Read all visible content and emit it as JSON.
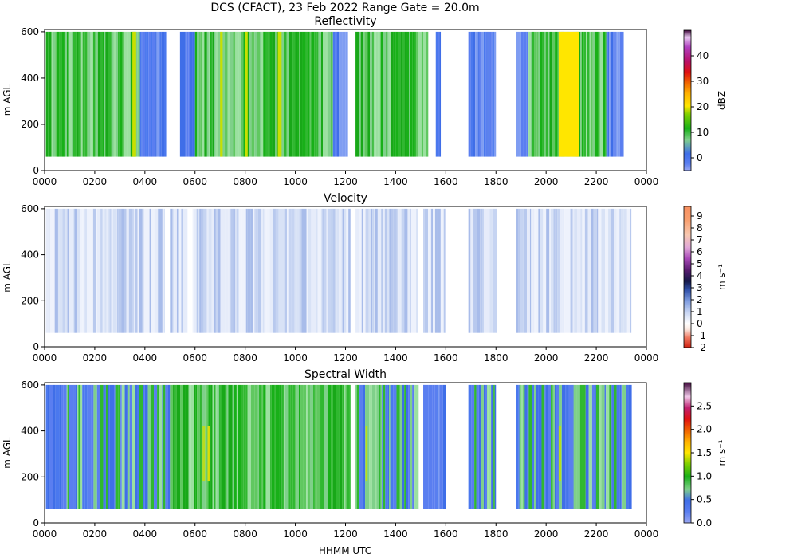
{
  "figure": {
    "suptitle": "DCS (CFACT), 23 Feb 2022 Range Gate = 20.0m",
    "xlabel": "HHMM UTC"
  },
  "chart_data": [
    {
      "type": "heatmap",
      "title": "Reflectivity",
      "xlabel": "",
      "ylabel": "m AGL",
      "xticks": [
        "0000",
        "0200",
        "0400",
        "0600",
        "0800",
        "1000",
        "1200",
        "1400",
        "1600",
        "1800",
        "2000",
        "2200",
        "0000"
      ],
      "yticks": [
        0,
        200,
        400,
        600
      ],
      "xlim_hours": [
        0,
        24
      ],
      "ylim": [
        0,
        610
      ],
      "data_height_range": [
        60,
        600
      ],
      "colorbar": {
        "label": "dBZ",
        "ticks": [
          0,
          10,
          20,
          30,
          40
        ],
        "tick_labels": [
          "0",
          "10",
          "20",
          "30",
          "40"
        ],
        "range": [
          -5,
          50
        ]
      },
      "segments_hours": [
        [
          0.05,
          3.8,
          "green"
        ],
        [
          3.8,
          4.6,
          "blue"
        ],
        [
          4.6,
          4.85,
          "blue"
        ],
        [
          5.4,
          6.0,
          "blue"
        ],
        [
          6.0,
          11.5,
          "green"
        ],
        [
          11.5,
          12.1,
          "blue"
        ],
        [
          12.4,
          15.3,
          "green"
        ],
        [
          15.6,
          15.8,
          "blue"
        ],
        [
          16.9,
          18.0,
          "blue"
        ],
        [
          18.8,
          19.3,
          "blue"
        ],
        [
          19.3,
          22.4,
          "green"
        ],
        [
          22.4,
          23.1,
          "blue"
        ]
      ],
      "bright_bands_hours": [
        [
          3.5,
          3.65
        ],
        [
          7.0,
          7.1
        ],
        [
          8.0,
          8.1
        ],
        [
          9.3,
          9.45
        ],
        [
          20.5,
          21.3
        ]
      ]
    },
    {
      "type": "heatmap",
      "title": "Velocity",
      "xlabel": "",
      "ylabel": "m AGL",
      "xticks": [
        "0000",
        "0200",
        "0400",
        "0600",
        "0800",
        "1000",
        "1200",
        "1400",
        "1600",
        "1800",
        "2000",
        "2200",
        "0000"
      ],
      "yticks": [
        0,
        200,
        400,
        600
      ],
      "xlim_hours": [
        0,
        24
      ],
      "ylim": [
        0,
        610
      ],
      "data_height_range": [
        60,
        600
      ],
      "colorbar": {
        "label": "m s⁻¹",
        "ticks": [
          -2,
          -1,
          0,
          1,
          2,
          3,
          4,
          5,
          6,
          7,
          8,
          9
        ],
        "tick_labels": [
          "-2",
          "-1",
          "0",
          "1",
          "2",
          "3",
          "4",
          "5",
          "6",
          "7",
          "8",
          "9"
        ],
        "range": [
          -2,
          9.8
        ]
      },
      "segments_hours": [
        [
          0.05,
          4.8,
          "light"
        ],
        [
          5.0,
          5.7,
          "light"
        ],
        [
          5.9,
          12.2,
          "light"
        ],
        [
          12.4,
          14.9,
          "light"
        ],
        [
          15.1,
          16.0,
          "light"
        ],
        [
          16.9,
          18.0,
          "light"
        ],
        [
          18.8,
          23.4,
          "light"
        ]
      ]
    },
    {
      "type": "heatmap",
      "title": "Spectral Width",
      "xlabel": "HHMM UTC",
      "ylabel": "m AGL",
      "xticks": [
        "0000",
        "0200",
        "0400",
        "0600",
        "0800",
        "1000",
        "1200",
        "1400",
        "1600",
        "1800",
        "2000",
        "2200",
        "0000"
      ],
      "yticks": [
        0,
        200,
        400,
        600
      ],
      "xlim_hours": [
        0,
        24
      ],
      "ylim": [
        0,
        610
      ],
      "data_height_range": [
        60,
        600
      ],
      "colorbar": {
        "label": "m s⁻¹",
        "ticks": [
          0.0,
          0.5,
          1.0,
          1.5,
          2.0,
          2.5
        ],
        "tick_labels": [
          "0.0",
          "0.5",
          "1.0",
          "1.5",
          "2.0",
          "2.5"
        ],
        "range": [
          0,
          3.0
        ]
      },
      "segments_hours": [
        [
          0.05,
          5.0,
          "mixed"
        ],
        [
          5.0,
          12.2,
          "green"
        ],
        [
          12.4,
          14.9,
          "mixed"
        ],
        [
          15.1,
          16.0,
          "blue"
        ],
        [
          16.9,
          18.0,
          "mixed"
        ],
        [
          18.8,
          23.4,
          "mixed"
        ]
      ]
    }
  ]
}
